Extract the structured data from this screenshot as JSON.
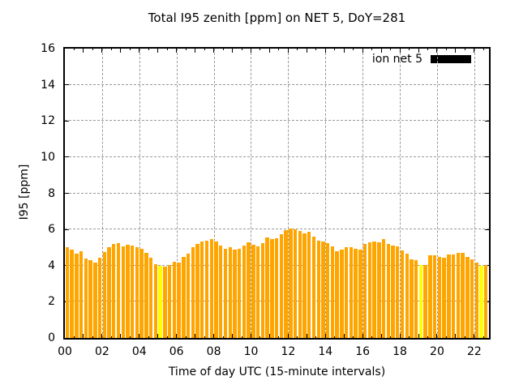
{
  "chart": {
    "title": "Total I95 zenith [ppm] on NET 5, DoY=281",
    "xlabel": "Time of day UTC (15-minute intervals)",
    "ylabel": "I95 [ppm]",
    "legend": {
      "label": "ion net 5",
      "swatch_color": "#000000"
    }
  },
  "chart_data": {
    "type": "bar",
    "title": "Total I95 zenith [ppm] on NET 5, DoY=281",
    "xlabel": "Time of day UTC (15-minute intervals)",
    "ylabel": "I95 [ppm]",
    "x_start": "00:00",
    "x_step_minutes": 15,
    "x_hours_span": 22.79,
    "ylim": [
      0,
      16
    ],
    "yticks": [
      0,
      2,
      4,
      6,
      8,
      10,
      12,
      14,
      16
    ],
    "xticks_hours": [
      0,
      2,
      4,
      6,
      8,
      10,
      12,
      14,
      16,
      18,
      20,
      22
    ],
    "xtick_labels": [
      "00",
      "02",
      "04",
      "06",
      "08",
      "10",
      "12",
      "14",
      "16",
      "18",
      "20",
      "22"
    ],
    "grid": true,
    "legend_position": "top-right",
    "bar_color": "#FFA500",
    "highlight_color": "#FFFF00",
    "highlight_indices": [
      20,
      76,
      89
    ],
    "series": [
      {
        "name": "ion net 5",
        "values": [
          5.0,
          4.9,
          4.65,
          4.8,
          4.4,
          4.3,
          4.15,
          4.45,
          4.75,
          5.0,
          5.2,
          5.25,
          5.05,
          5.15,
          5.1,
          5.0,
          4.95,
          4.7,
          4.45,
          4.1,
          4.0,
          3.95,
          4.05,
          4.2,
          4.15,
          4.5,
          4.65,
          5.0,
          5.2,
          5.35,
          5.4,
          5.45,
          5.35,
          5.1,
          4.95,
          5.0,
          4.9,
          4.95,
          5.1,
          5.3,
          5.15,
          5.05,
          5.25,
          5.55,
          5.45,
          5.5,
          5.75,
          5.95,
          6.05,
          6.0,
          5.9,
          5.8,
          5.85,
          5.6,
          5.4,
          5.35,
          5.25,
          5.05,
          4.8,
          4.9,
          5.0,
          5.0,
          4.95,
          4.9,
          5.2,
          5.3,
          5.35,
          5.3,
          5.45,
          5.2,
          5.1,
          5.05,
          4.85,
          4.65,
          4.35,
          4.3,
          4.05,
          4.05,
          4.55,
          4.55,
          4.5,
          4.45,
          4.6,
          4.6,
          4.7,
          4.7,
          4.5,
          4.35,
          4.15,
          4.0,
          4.05
        ]
      }
    ]
  }
}
